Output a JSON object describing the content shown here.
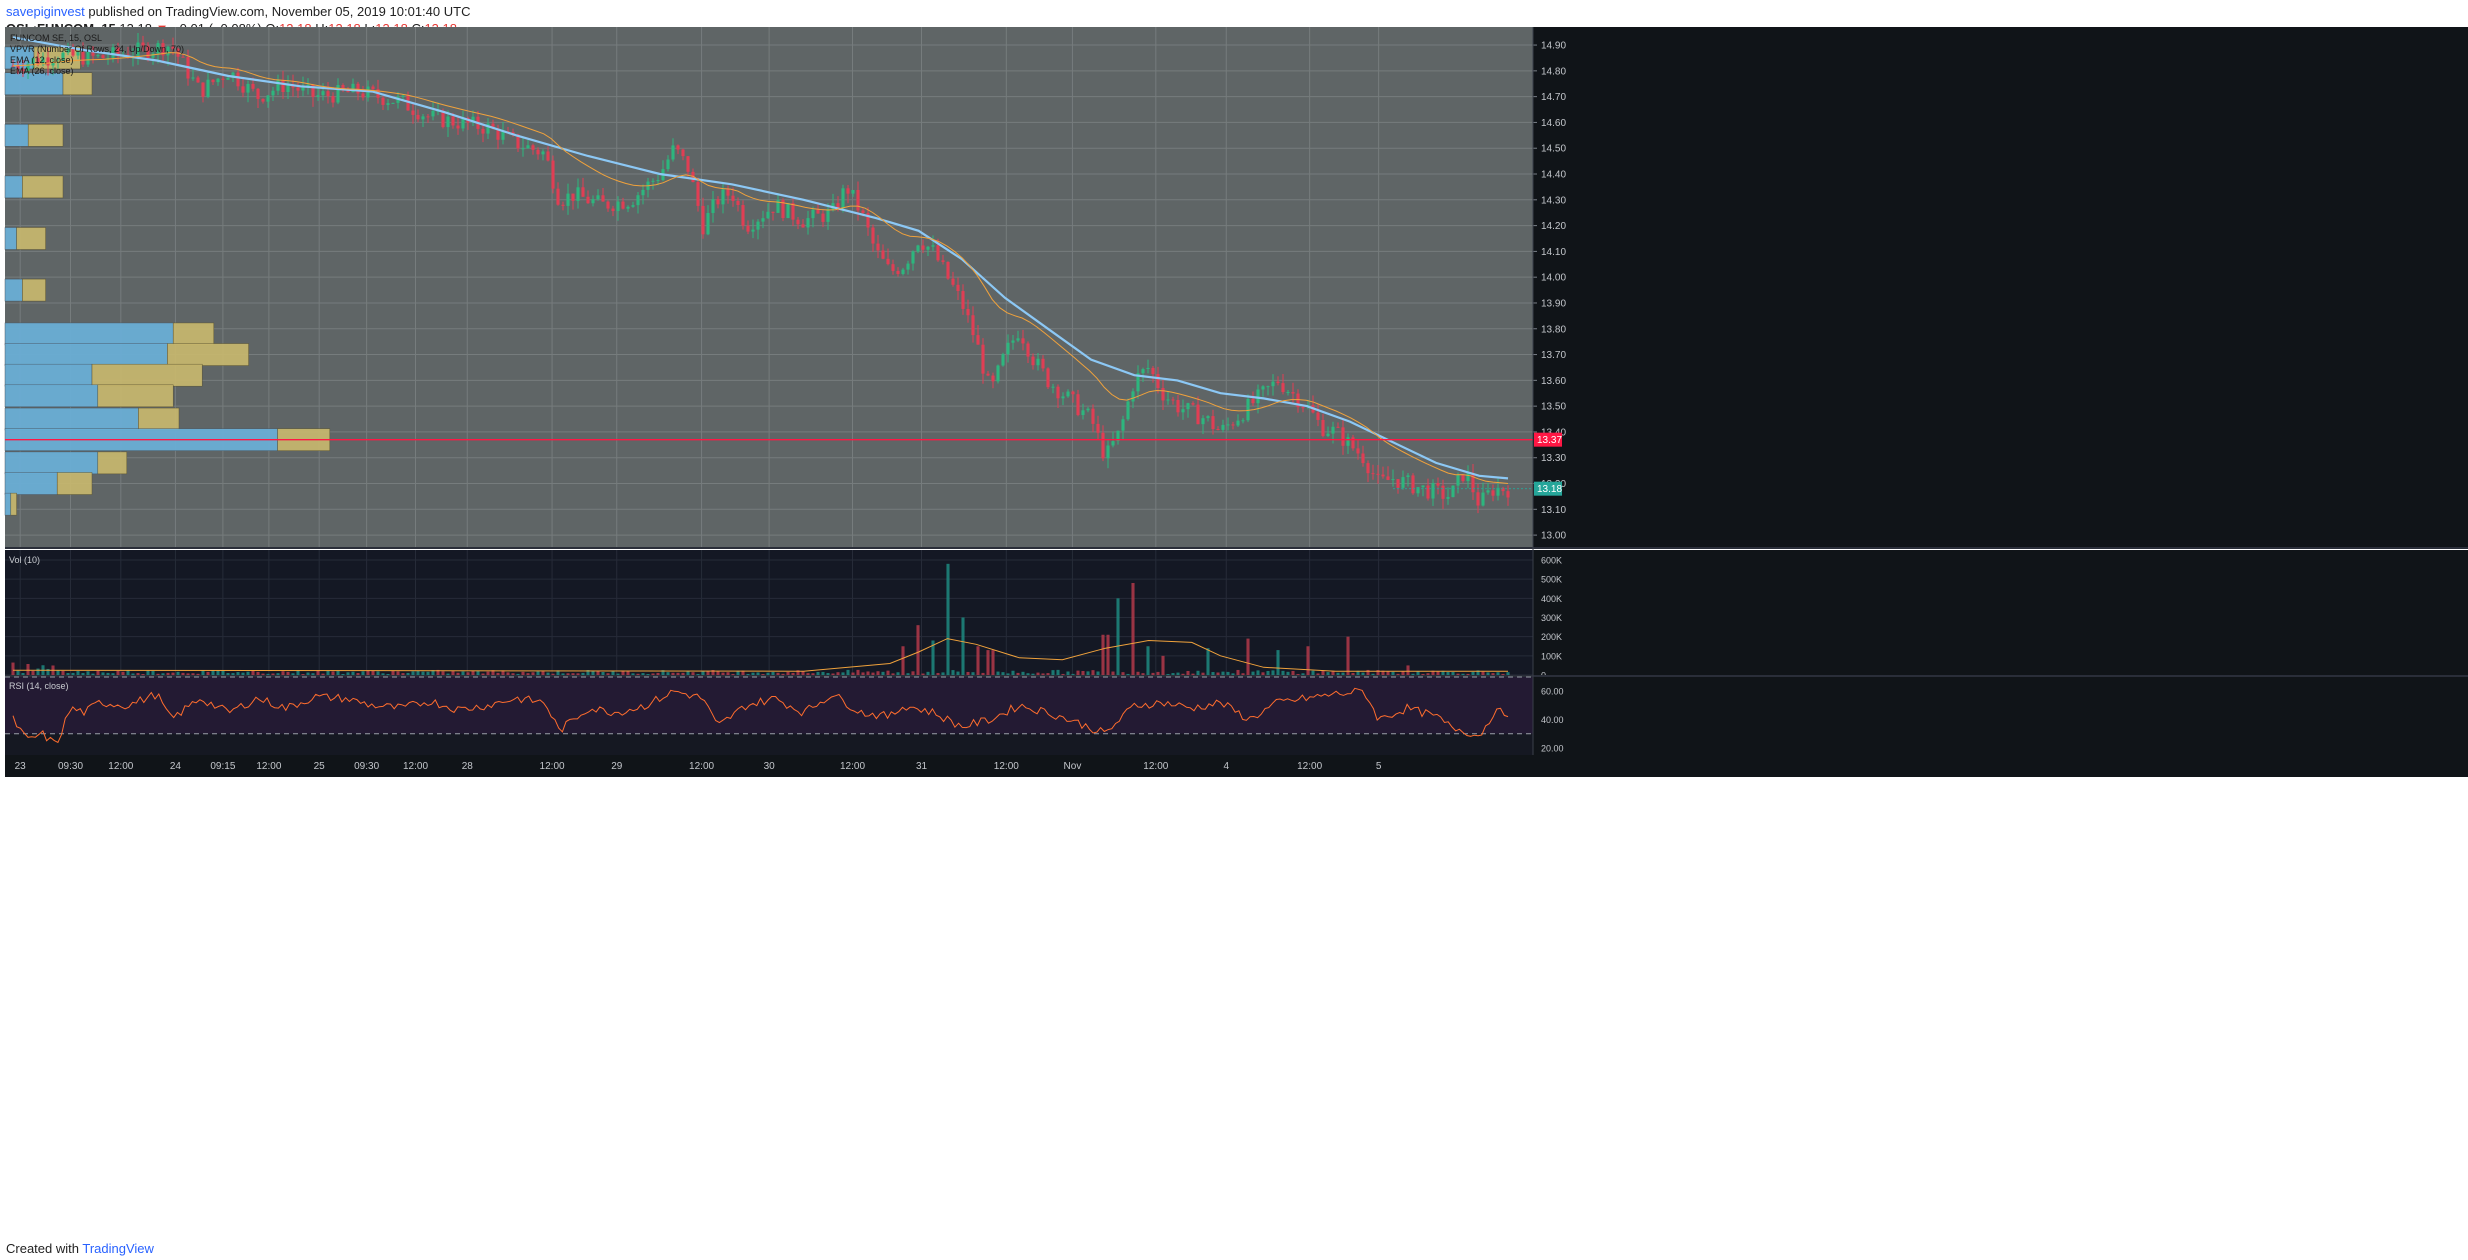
{
  "header": {
    "user": "savepiginvest",
    "published_text": "published on TradingView.com, November 05, 2019 10:01:40 UTC",
    "symbol": "OSL:FUNCOM, 15",
    "last": "13.18",
    "change_arrow": "▼",
    "change": "−0.01 (−0.08%)",
    "o_label": "O:",
    "o": "13.18",
    "h_label": "H:",
    "h": "13.18",
    "l_label": "L:",
    "l": "13.18",
    "c_label": "C:",
    "c": "13.18"
  },
  "footer": {
    "created_with": "Created with",
    "brand": "TradingView"
  },
  "colors": {
    "pane_bg": "#5f6566",
    "vol_bg": "#141824",
    "rsi_bg": "#231a33",
    "up": "#26a69a",
    "down": "#ef5350",
    "up_bar": "#2db67e",
    "down_bar": "#e03e54",
    "ema12": "#f0a23c",
    "ema26": "#8cc8f5",
    "price_line": "#ff1744",
    "vp_up": "#6ab0d8",
    "vp_down": "#c8b86e",
    "rsi_line": "#ff6d2e"
  },
  "chart_data": {
    "type": "candlestick",
    "price_pane": {
      "legend": [
        "FUNCOM SE, 15, OSL",
        "VPVR (Number Of Rows, 24, Up/Down, 70)",
        "EMA (12, close)",
        "EMA (26, close)"
      ],
      "y_ticks": [
        "14.90",
        "14.80",
        "14.70",
        "14.60",
        "14.50",
        "14.40",
        "14.30",
        "14.20",
        "14.10",
        "14.00",
        "13.90",
        "13.80",
        "13.70",
        "13.60",
        "13.50",
        "13.40",
        "13.30",
        "13.20",
        "13.10",
        "13.00"
      ],
      "ylim": [
        12.95,
        14.97
      ],
      "price_line": {
        "value": 13.37,
        "label": "13.37"
      },
      "last_price": {
        "value": 13.18,
        "label": "13.18"
      },
      "close_path": [
        [
          0,
          14.82
        ],
        [
          3,
          14.86
        ],
        [
          6,
          14.85
        ],
        [
          9,
          14.88
        ],
        [
          11,
          14.9
        ],
        [
          13,
          14.72
        ],
        [
          15,
          14.8
        ],
        [
          17,
          14.7
        ],
        [
          19,
          14.75
        ],
        [
          21,
          14.7
        ],
        [
          24,
          14.72
        ],
        [
          27,
          14.68
        ],
        [
          29,
          14.62
        ],
        [
          31,
          14.6
        ],
        [
          33,
          14.58
        ],
        [
          35,
          14.52
        ],
        [
          37,
          14.48
        ],
        [
          38,
          14.3
        ],
        [
          39,
          14.32
        ],
        [
          41,
          14.28
        ],
        [
          43,
          14.3
        ],
        [
          45,
          14.4
        ],
        [
          46,
          14.5
        ],
        [
          47,
          14.42
        ],
        [
          48,
          14.2
        ],
        [
          49,
          14.3
        ],
        [
          50,
          14.33
        ],
        [
          51,
          14.2
        ],
        [
          53,
          14.28
        ],
        [
          55,
          14.22
        ],
        [
          57,
          14.25
        ],
        [
          58,
          14.35
        ],
        [
          59,
          14.25
        ],
        [
          60,
          14.1
        ],
        [
          61,
          14.02
        ],
        [
          62,
          14.05
        ],
        [
          63,
          14.15
        ],
        [
          64,
          14.1
        ],
        [
          65,
          14.0
        ],
        [
          66,
          13.9
        ],
        [
          67,
          13.75
        ],
        [
          68,
          13.55
        ],
        [
          69,
          13.7
        ],
        [
          70,
          13.8
        ],
        [
          71,
          13.68
        ],
        [
          72,
          13.6
        ],
        [
          73,
          13.55
        ],
        [
          74,
          13.5
        ],
        [
          75,
          13.45
        ],
        [
          76,
          13.3
        ],
        [
          77,
          13.4
        ],
        [
          78,
          13.6
        ],
        [
          79,
          13.65
        ],
        [
          80,
          13.55
        ],
        [
          81,
          13.5
        ],
        [
          83,
          13.45
        ],
        [
          84,
          13.4
        ],
        [
          85,
          13.45
        ],
        [
          86,
          13.5
        ],
        [
          87,
          13.55
        ],
        [
          88,
          13.6
        ],
        [
          89,
          13.55
        ],
        [
          90,
          13.5
        ],
        [
          91,
          13.42
        ],
        [
          92,
          13.4
        ],
        [
          93,
          13.35
        ],
        [
          94,
          13.3
        ],
        [
          95,
          13.2
        ],
        [
          96,
          13.22
        ],
        [
          98,
          13.18
        ],
        [
          100,
          13.15
        ],
        [
          101,
          13.25
        ],
        [
          102,
          13.12
        ],
        [
          103,
          13.18
        ],
        [
          104,
          13.18
        ]
      ],
      "ema26_path": [
        [
          0,
          14.93
        ],
        [
          5,
          14.88
        ],
        [
          10,
          14.84
        ],
        [
          15,
          14.78
        ],
        [
          20,
          14.74
        ],
        [
          25,
          14.72
        ],
        [
          30,
          14.64
        ],
        [
          35,
          14.55
        ],
        [
          40,
          14.47
        ],
        [
          45,
          14.4
        ],
        [
          50,
          14.36
        ],
        [
          55,
          14.3
        ],
        [
          60,
          14.23
        ],
        [
          63,
          14.18
        ],
        [
          66,
          14.07
        ],
        [
          69,
          13.92
        ],
        [
          72,
          13.8
        ],
        [
          75,
          13.68
        ],
        [
          78,
          13.62
        ],
        [
          81,
          13.6
        ],
        [
          84,
          13.55
        ],
        [
          87,
          13.53
        ],
        [
          90,
          13.5
        ],
        [
          93,
          13.44
        ],
        [
          96,
          13.36
        ],
        [
          99,
          13.28
        ],
        [
          102,
          13.23
        ],
        [
          104,
          13.22
        ]
      ],
      "volume_profile": [
        {
          "price": 14.85,
          "up": 0.05,
          "down": 0.08
        },
        {
          "price": 14.75,
          "up": 0.1,
          "down": 0.05
        },
        {
          "price": 14.55,
          "up": 0.04,
          "down": 0.06
        },
        {
          "price": 14.35,
          "up": 0.03,
          "down": 0.07
        },
        {
          "price": 14.15,
          "up": 0.02,
          "down": 0.05
        },
        {
          "price": 13.95,
          "up": 0.03,
          "down": 0.04
        },
        {
          "price": 13.78,
          "up": 0.29,
          "down": 0.07
        },
        {
          "price": 13.7,
          "up": 0.28,
          "down": 0.14
        },
        {
          "price": 13.62,
          "up": 0.15,
          "down": 0.19
        },
        {
          "price": 13.54,
          "up": 0.16,
          "down": 0.13
        },
        {
          "price": 13.45,
          "up": 0.23,
          "down": 0.07
        },
        {
          "price": 13.37,
          "up": 0.47,
          "down": 0.09
        },
        {
          "price": 13.28,
          "up": 0.16,
          "down": 0.05
        },
        {
          "price": 13.2,
          "up": 0.09,
          "down": 0.06
        },
        {
          "price": 13.12,
          "up": 0.01,
          "down": 0.01
        }
      ]
    },
    "volume_pane": {
      "label": "Vol (10)",
      "y_ticks": [
        "600K",
        "500K",
        "400K",
        "300K",
        "200K",
        "100K",
        "0"
      ],
      "ylim": [
        0,
        600000
      ],
      "spikes": [
        [
          62,
          150000,
          "down"
        ],
        [
          63,
          260000,
          "down"
        ],
        [
          64,
          180000,
          "up"
        ],
        [
          65,
          580000,
          "up"
        ],
        [
          66,
          300000,
          "up"
        ],
        [
          67,
          150000,
          "down"
        ],
        [
          68,
          130000,
          "down"
        ],
        [
          76,
          210000,
          "down"
        ],
        [
          77,
          400000,
          "up"
        ],
        [
          78,
          480000,
          "down"
        ],
        [
          79,
          150000,
          "up"
        ],
        [
          80,
          100000,
          "down"
        ],
        [
          83,
          140000,
          "up"
        ],
        [
          86,
          190000,
          "down"
        ],
        [
          88,
          130000,
          "up"
        ],
        [
          90,
          150000,
          "down"
        ],
        [
          93,
          200000,
          "down"
        ],
        [
          97,
          50000,
          "down"
        ]
      ],
      "ma_path": [
        [
          0,
          25000
        ],
        [
          55,
          20000
        ],
        [
          61,
          60000
        ],
        [
          63,
          120000
        ],
        [
          65,
          190000
        ],
        [
          67,
          160000
        ],
        [
          70,
          90000
        ],
        [
          73,
          80000
        ],
        [
          76,
          140000
        ],
        [
          79,
          180000
        ],
        [
          82,
          170000
        ],
        [
          84,
          100000
        ],
        [
          87,
          40000
        ],
        [
          92,
          20000
        ],
        [
          104,
          20000
        ]
      ]
    },
    "rsi_pane": {
      "label": "RSI (14, close)",
      "y_ticks": [
        "60.00",
        "40.00",
        "20.00"
      ],
      "ylim": [
        15,
        70
      ],
      "bands": [
        70,
        30
      ],
      "path": [
        [
          0,
          40
        ],
        [
          1,
          25
        ],
        [
          2,
          30
        ],
        [
          3,
          22
        ],
        [
          4,
          48
        ],
        [
          5,
          45
        ],
        [
          6,
          52
        ],
        [
          8,
          50
        ],
        [
          10,
          58
        ],
        [
          11,
          40
        ],
        [
          13,
          55
        ],
        [
          15,
          45
        ],
        [
          17,
          55
        ],
        [
          19,
          48
        ],
        [
          21,
          56
        ],
        [
          23,
          55
        ],
        [
          25,
          50
        ],
        [
          27,
          48
        ],
        [
          29,
          53
        ],
        [
          31,
          47
        ],
        [
          33,
          50
        ],
        [
          35,
          55
        ],
        [
          37,
          52
        ],
        [
          38,
          32
        ],
        [
          40,
          48
        ],
        [
          42,
          45
        ],
        [
          44,
          50
        ],
        [
          46,
          60
        ],
        [
          48,
          55
        ],
        [
          49,
          35
        ],
        [
          51,
          50
        ],
        [
          53,
          55
        ],
        [
          55,
          45
        ],
        [
          57,
          58
        ],
        [
          59,
          45
        ],
        [
          61,
          42
        ],
        [
          62,
          50
        ],
        [
          64,
          45
        ],
        [
          66,
          35
        ],
        [
          68,
          40
        ],
        [
          70,
          50
        ],
        [
          72,
          45
        ],
        [
          74,
          38
        ],
        [
          76,
          30
        ],
        [
          78,
          50
        ],
        [
          80,
          52
        ],
        [
          82,
          48
        ],
        [
          84,
          52
        ],
        [
          86,
          40
        ],
        [
          88,
          52
        ],
        [
          90,
          55
        ],
        [
          92,
          58
        ],
        [
          94,
          60
        ],
        [
          95,
          40
        ],
        [
          97,
          48
        ],
        [
          99,
          42
        ],
        [
          100,
          35
        ],
        [
          101,
          32
        ],
        [
          102,
          28
        ],
        [
          103,
          45
        ],
        [
          104,
          45
        ]
      ]
    },
    "x_ticks": [
      {
        "label": "23",
        "pos": 0.5
      },
      {
        "label": "09:30",
        "pos": 4
      },
      {
        "label": "12:00",
        "pos": 7.5
      },
      {
        "label": "24",
        "pos": 11.3
      },
      {
        "label": "09:15",
        "pos": 14.6
      },
      {
        "label": "12:00",
        "pos": 17.8
      },
      {
        "label": "25",
        "pos": 21.3
      },
      {
        "label": "09:30",
        "pos": 24.6
      },
      {
        "label": "12:00",
        "pos": 28
      },
      {
        "label": "28",
        "pos": 31.6
      },
      {
        "label": "12:00",
        "pos": 37.5
      },
      {
        "label": "29",
        "pos": 42
      },
      {
        "label": "12:00",
        "pos": 47.9
      },
      {
        "label": "30",
        "pos": 52.6
      },
      {
        "label": "12:00",
        "pos": 58.4
      },
      {
        "label": "31",
        "pos": 63.2
      },
      {
        "label": "12:00",
        "pos": 69.1
      },
      {
        "label": "Nov",
        "pos": 73.7
      },
      {
        "label": "12:00",
        "pos": 79.5
      },
      {
        "label": "4",
        "pos": 84.4
      },
      {
        "label": "12:00",
        "pos": 90.2
      },
      {
        "label": "5",
        "pos": 95
      }
    ]
  }
}
